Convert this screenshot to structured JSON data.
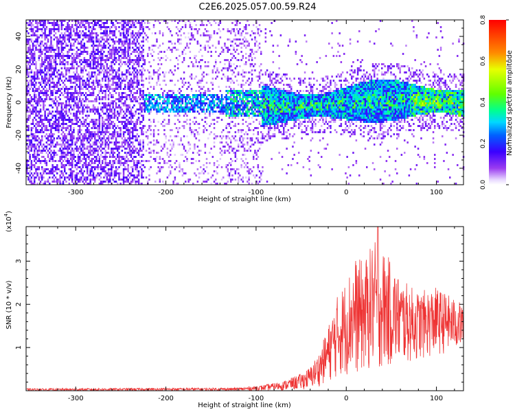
{
  "title": "C2E6.2025.057.00.59.R24",
  "chart_data": [
    {
      "type": "heatmap",
      "xlabel": "Height of straight line (km)",
      "ylabel": "Frequency (Hz)",
      "xlim": [
        -355,
        130
      ],
      "ylim": [
        -50,
        50
      ],
      "xticks": [
        -300,
        -200,
        -100,
        0,
        100
      ],
      "xtick_labels": [
        "-300",
        "-200",
        "-100",
        "0",
        "100"
      ],
      "yticks": [
        -40,
        -20,
        0,
        20,
        40
      ],
      "ytick_labels": [
        "-40",
        "-20",
        "0",
        "20",
        "40"
      ],
      "colorbar": {
        "label": "Normalized spectral amplitude",
        "range": [
          0,
          0.8
        ],
        "ticks": [
          "0.0",
          "0.2",
          "0.4",
          "0.6",
          "0.8"
        ],
        "colormap": "rainbow (white - violet - blue - cyan - green - yellow - red)"
      },
      "features": {
        "noise_region_x": [
          -355,
          -95
        ],
        "signal_band_center_hz": 0,
        "signal_band_halfwidth_hz": 8,
        "signal_start_x": -225,
        "max_amplitude_approx": 0.5,
        "grid": false
      }
    },
    {
      "type": "line",
      "xlabel": "Height of straight line (km)",
      "ylabel": "SNR (10 * v/v)",
      "yscale_label": "(x10",
      "yscale_exp": "4",
      "yscale_close": ")",
      "xlim": [
        -355,
        130
      ],
      "ylim": [
        0,
        3.8
      ],
      "xticks": [
        -300,
        -200,
        -100,
        0,
        100
      ],
      "xtick_labels": [
        "-300",
        "-200",
        "-100",
        "0",
        "100"
      ],
      "yticks": [
        1,
        2,
        3
      ],
      "ytick_labels": [
        "1",
        "2",
        "3"
      ],
      "color": "#ee3333",
      "grid": false,
      "envelope": {
        "x": [
          -355,
          -120,
          -95,
          -70,
          -50,
          -40,
          -30,
          -20,
          -10,
          0,
          10,
          20,
          30,
          40,
          50,
          60,
          80,
          100,
          115,
          130
        ],
        "upper": [
          0.05,
          0.07,
          0.12,
          0.22,
          0.4,
          0.55,
          0.9,
          1.5,
          2.2,
          2.6,
          3.1,
          3.0,
          3.5,
          3.3,
          3.0,
          2.6,
          2.3,
          2.4,
          2.2,
          2.0
        ],
        "lower": [
          0.0,
          0.0,
          0.0,
          0.01,
          0.02,
          0.05,
          0.1,
          0.2,
          0.3,
          0.35,
          0.35,
          0.4,
          0.45,
          0.5,
          0.55,
          0.6,
          0.7,
          0.8,
          0.9,
          1.0
        ],
        "peak": {
          "x": 35,
          "y": 3.85
        }
      }
    }
  ]
}
